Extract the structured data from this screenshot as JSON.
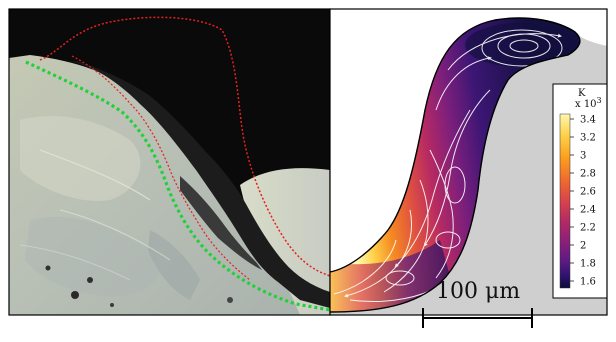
{
  "figure": {
    "colorbar": {
      "unit": "K",
      "multiplier": "x 10",
      "exponent": "3",
      "ticks": [
        "3.4",
        "3.2",
        "3",
        "2.8",
        "2.6",
        "2.4",
        "2.2",
        "2",
        "1.8",
        "1.6"
      ],
      "colors": [
        "#fff6b0",
        "#ffd24a",
        "#fb9f1e",
        "#f06b2e",
        "#d8434b",
        "#b22a64",
        "#87207a",
        "#5b1a82",
        "#2e146e",
        "#0c0a3a"
      ]
    },
    "scale_bar": {
      "label": "100 μm"
    },
    "overlay_colors": {
      "melt_pool_outline": "#e82020",
      "fusion_boundary": "#22d03a"
    }
  }
}
